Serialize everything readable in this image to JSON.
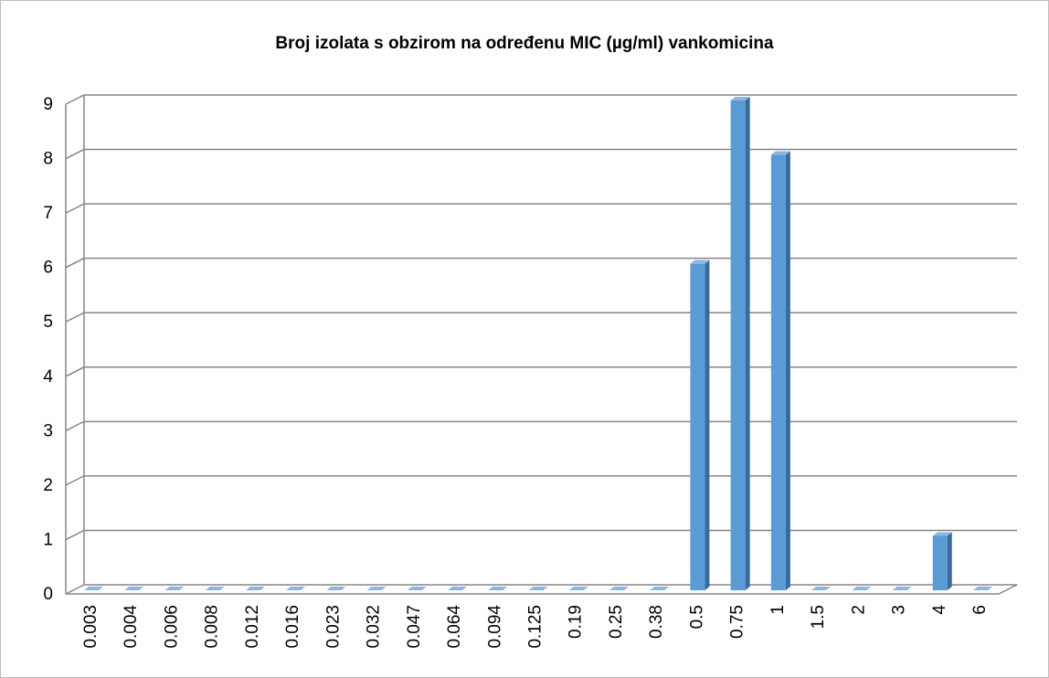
{
  "chart_data": {
    "type": "bar",
    "title": "Broj izolata s obzirom na određenu MIC (µg/ml) vankomicina",
    "categories": [
      "0.003",
      "0.004",
      "0.006",
      "0.008",
      "0.012",
      "0.016",
      "0.023",
      "0.032",
      "0.047",
      "0.064",
      "0.094",
      "0.125",
      "0.19",
      "0.25",
      "0.38",
      "0.5",
      "0.75",
      "1",
      "1.5",
      "2",
      "3",
      "4",
      "6"
    ],
    "values": [
      0,
      0,
      0,
      0,
      0,
      0,
      0,
      0,
      0,
      0,
      0,
      0,
      0,
      0,
      0,
      6,
      9,
      8,
      0,
      0,
      0,
      1,
      0
    ],
    "color": "#5b9bd5",
    "ylim": [
      0,
      9
    ],
    "yticks": [
      0,
      1,
      2,
      3,
      4,
      5,
      6,
      7,
      8,
      9
    ],
    "grid": true
  }
}
